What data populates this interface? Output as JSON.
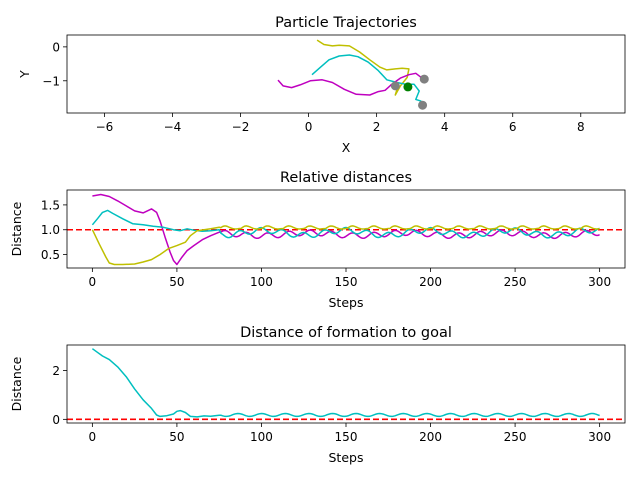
{
  "chart_data": [
    {
      "type": "line",
      "title": "Particle Trajectories",
      "xlabel": "X",
      "ylabel": "Y",
      "xlim": [
        -7.1,
        9.3
      ],
      "ylim": [
        -1.95,
        0.35
      ],
      "xticks": [
        -6,
        -4,
        -2,
        0,
        2,
        4,
        6,
        8
      ],
      "yticks": [
        0,
        -1
      ],
      "series": [
        {
          "color": "#bfbf00",
          "x": [
            0.25,
            0.45,
            0.7,
            0.9,
            1.2,
            1.5,
            1.8,
            2.1,
            2.3,
            2.55,
            2.75,
            2.95,
            2.9,
            2.7,
            2.55,
            2.6,
            2.48,
            2.42,
            2.5
          ],
          "y": [
            0.2,
            0.07,
            0.03,
            0.05,
            0.03,
            -0.15,
            -0.38,
            -0.6,
            -0.68,
            -0.65,
            -0.63,
            -0.65,
            -0.9,
            -1.15,
            -1.42,
            -1.25,
            -1.1,
            -1.12,
            -1.15
          ]
        },
        {
          "color": "#00bfbf",
          "x": [
            0.1,
            0.35,
            0.6,
            0.9,
            1.2,
            1.45,
            1.75,
            2.05,
            2.3,
            2.6,
            2.85,
            3.1,
            3.25,
            3.15,
            3.3,
            3.25,
            3.35
          ],
          "y": [
            -0.82,
            -0.6,
            -0.38,
            -0.27,
            -0.24,
            -0.29,
            -0.45,
            -0.7,
            -0.97,
            -1.05,
            -1.1,
            -1.1,
            -1.3,
            -1.55,
            -1.6,
            -1.75,
            -1.72
          ]
        },
        {
          "color": "#bf00bf",
          "x": [
            -0.9,
            -0.75,
            -0.5,
            -0.25,
            0.05,
            0.4,
            0.7,
            1.05,
            1.4,
            1.8,
            2.05,
            2.25,
            2.45,
            2.7,
            2.95,
            3.15,
            3.28,
            3.35
          ],
          "y": [
            -0.98,
            -1.15,
            -1.2,
            -1.12,
            -1.0,
            -0.97,
            -1.05,
            -1.25,
            -1.4,
            -1.42,
            -1.32,
            -1.28,
            -1.1,
            -0.92,
            -0.82,
            -0.78,
            -0.88,
            -0.92
          ]
        }
      ],
      "markers": [
        {
          "color": "#808080",
          "x": 2.55,
          "y": -1.15
        },
        {
          "color": "#808080",
          "x": 3.4,
          "y": -0.95
        },
        {
          "color": "#808080",
          "x": 3.35,
          "y": -1.72
        },
        {
          "color": "#008000",
          "x": 2.92,
          "y": -1.18
        }
      ]
    },
    {
      "type": "line",
      "title": "Relative distances",
      "xlabel": "Steps",
      "ylabel": "Distance",
      "xlim": [
        -15,
        315
      ],
      "ylim": [
        0.23,
        1.8
      ],
      "xticks": [
        0,
        50,
        100,
        150,
        200,
        250,
        300
      ],
      "yticks": [
        0.5,
        1.0,
        1.5
      ],
      "hline": {
        "y": 1.0,
        "color": "#ff0000"
      },
      "series": [
        {
          "color": "#bf00bf",
          "x": [
            0,
            5,
            10,
            15,
            20,
            25,
            30,
            35,
            38,
            40,
            43,
            46,
            48,
            50,
            53,
            56,
            60,
            65,
            70,
            75
          ],
          "y": [
            1.68,
            1.71,
            1.67,
            1.58,
            1.48,
            1.38,
            1.34,
            1.42,
            1.35,
            1.18,
            0.85,
            0.55,
            0.38,
            0.3,
            0.45,
            0.58,
            0.68,
            0.8,
            0.88,
            0.95
          ]
        },
        {
          "color": "#00bfbf",
          "x": [
            0,
            3,
            6,
            9,
            12,
            18,
            24,
            30,
            36,
            42,
            48,
            52,
            56,
            60,
            65,
            70,
            75
          ],
          "y": [
            1.1,
            1.22,
            1.35,
            1.39,
            1.33,
            1.22,
            1.12,
            1.1,
            1.07,
            1.05,
            1.0,
            0.98,
            1.02,
            0.99,
            0.97,
            0.98,
            1.0
          ]
        },
        {
          "color": "#bfbf00",
          "x": [
            0,
            4,
            8,
            10,
            13,
            18,
            25,
            30,
            35,
            40,
            45,
            50,
            55,
            58,
            62,
            66,
            70,
            75
          ],
          "y": [
            1.0,
            0.72,
            0.45,
            0.33,
            0.3,
            0.3,
            0.31,
            0.35,
            0.4,
            0.5,
            0.62,
            0.68,
            0.75,
            0.88,
            0.98,
            1.0,
            1.02,
            1.05
          ]
        }
      ],
      "steady": {
        "start": 75,
        "end": 300,
        "step": 1
      }
    },
    {
      "type": "line",
      "title": "Distance of formation to goal",
      "xlabel": "Steps",
      "ylabel": "Distance",
      "xlim": [
        -15,
        315
      ],
      "ylim": [
        -0.15,
        3.05
      ],
      "xticks": [
        0,
        50,
        100,
        150,
        200,
        250,
        300
      ],
      "yticks": [
        0,
        2
      ],
      "hline": {
        "y": 0.0,
        "color": "#ff0000"
      },
      "series": [
        {
          "color": "#00bfbf",
          "x": [
            0,
            3,
            6,
            10,
            15,
            20,
            25,
            30,
            35,
            38,
            40,
            44,
            48,
            50,
            52,
            55,
            58,
            62,
            66,
            70,
            75
          ],
          "y": [
            2.9,
            2.75,
            2.6,
            2.45,
            2.15,
            1.75,
            1.25,
            0.8,
            0.45,
            0.18,
            0.12,
            0.15,
            0.22,
            0.33,
            0.36,
            0.28,
            0.12,
            0.1,
            0.14,
            0.13,
            0.17
          ]
        }
      ],
      "steady": {
        "start": 75,
        "end": 300,
        "step": 1
      }
    }
  ]
}
